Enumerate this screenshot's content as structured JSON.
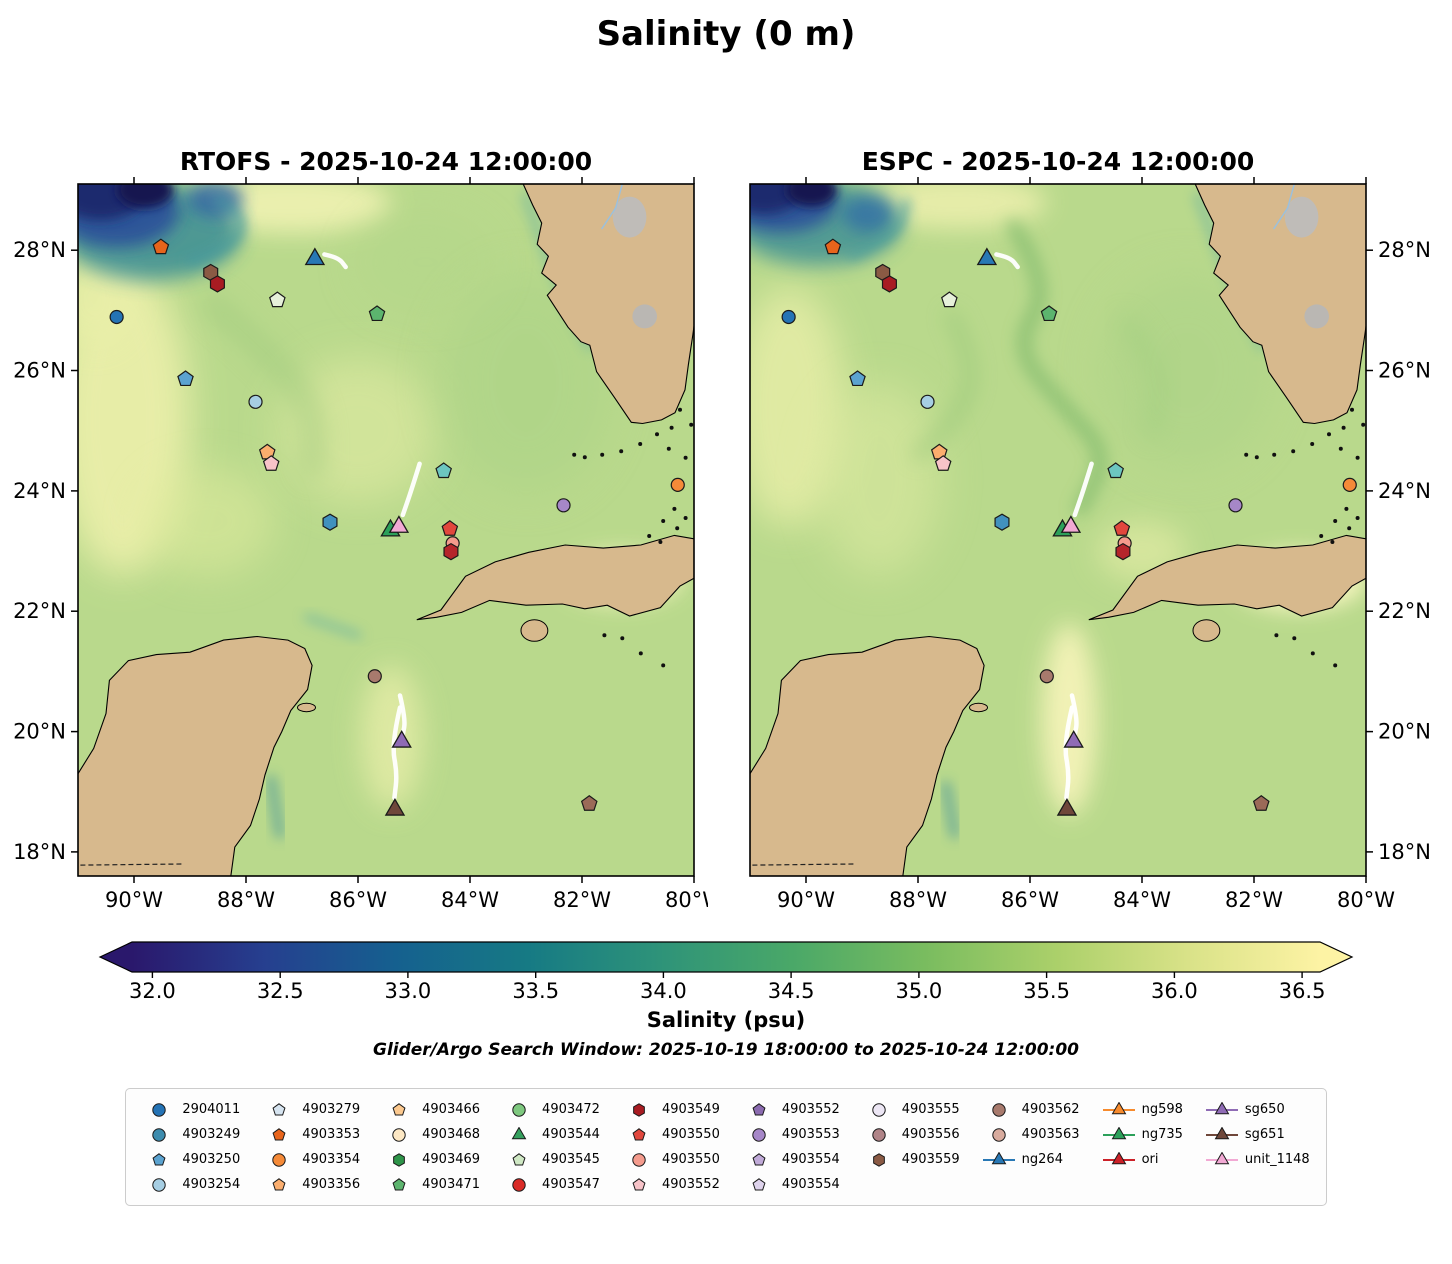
{
  "figure": {
    "title": "Salinity (0 m)"
  },
  "panels": [
    {
      "id": "rtofs",
      "title": "RTOFS - 2025-10-24 12:00:00"
    },
    {
      "id": "espc",
      "title": "ESPC - 2025-10-24 12:00:00"
    }
  ],
  "axes": {
    "lon_ticks": [
      {
        "value": -90,
        "label": "90°W"
      },
      {
        "value": -88,
        "label": "88°W"
      },
      {
        "value": -86,
        "label": "86°W"
      },
      {
        "value": -84,
        "label": "84°W"
      },
      {
        "value": -82,
        "label": "82°W"
      },
      {
        "value": -80,
        "label": "80°W"
      }
    ],
    "lat_ticks": [
      {
        "value": 18,
        "label": "18°N"
      },
      {
        "value": 20,
        "label": "20°N"
      },
      {
        "value": 22,
        "label": "22°N"
      },
      {
        "value": 24,
        "label": "24°N"
      },
      {
        "value": 26,
        "label": "26°N"
      },
      {
        "value": 28,
        "label": "28°N"
      }
    ]
  },
  "colorbar": {
    "label": "Salinity (psu)",
    "ticks": [
      "32.0",
      "32.5",
      "33.0",
      "33.5",
      "34.0",
      "34.5",
      "35.0",
      "35.5",
      "36.0",
      "36.5"
    ],
    "bar_range": [
      31.92,
      36.57
    ],
    "colors": [
      "#2a186c",
      "#263f8f",
      "#15608f",
      "#167a84",
      "#2e9379",
      "#4aa868",
      "#79bc5f",
      "#abd06a",
      "#d9e288",
      "#fdf3a4"
    ]
  },
  "search_window": "Glider/Argo Search Window: 2025-10-19 18:00:00 to 2025-10-24 12:00:00",
  "legend": {
    "columns": [
      [
        {
          "label": "2904011",
          "shape": "circle",
          "color": "#2473b5"
        },
        {
          "label": "4903249",
          "shape": "circle",
          "color": "#3d8cae"
        },
        {
          "label": "4903250",
          "shape": "pentagon",
          "color": "#5ba3d0"
        },
        {
          "label": "4903254",
          "shape": "circle",
          "color": "#a6cee3"
        }
      ],
      [
        {
          "label": "4903279",
          "shape": "pentagon",
          "color": "#d6e4f0"
        },
        {
          "label": "4903353",
          "shape": "pentagon",
          "color": "#e8641b"
        },
        {
          "label": "4903354",
          "shape": "circle",
          "color": "#f58a38"
        },
        {
          "label": "4903356",
          "shape": "pentagon",
          "color": "#fbae6e"
        }
      ],
      [
        {
          "label": "4903466",
          "shape": "pentagon",
          "color": "#fcc98f"
        },
        {
          "label": "4903468",
          "shape": "circle",
          "color": "#fde8c4"
        },
        {
          "label": "4903469",
          "shape": "hexagon",
          "color": "#2e9449"
        },
        {
          "label": "4903471",
          "shape": "pentagon",
          "color": "#5cb46e"
        }
      ],
      [
        {
          "label": "4903472",
          "shape": "circle",
          "color": "#7ec87f"
        },
        {
          "label": "4903544",
          "shape": "triangle",
          "color": "#35a05e"
        },
        {
          "label": "4903545",
          "shape": "pentagon",
          "color": "#cfe8c4"
        },
        {
          "label": "4903547",
          "shape": "circle",
          "color": "#d92b27"
        }
      ],
      [
        {
          "label": "4903549",
          "shape": "hexagon",
          "color": "#a81c22"
        },
        {
          "label": "4903550",
          "shape": "pentagon",
          "color": "#e1473d"
        },
        {
          "label": "4903550",
          "shape": "circle",
          "color": "#f49b8d"
        },
        {
          "label": "4903552",
          "shape": "pentagon",
          "color": "#f7c3c8"
        }
      ],
      [
        {
          "label": "4903552",
          "shape": "pentagon",
          "color": "#8b6bb0"
        },
        {
          "label": "4903553",
          "shape": "circle",
          "color": "#a687c8"
        },
        {
          "label": "4903554",
          "shape": "pentagon",
          "color": "#c0aad8"
        },
        {
          "label": "4903554",
          "shape": "pentagon",
          "color": "#ded3ec"
        }
      ],
      [
        {
          "label": "4903555",
          "shape": "circle",
          "color": "#ece6f4"
        },
        {
          "label": "4903556",
          "shape": "circle",
          "color": "#b08488"
        },
        {
          "label": "4903559",
          "shape": "hexagon",
          "color": "#8a5a44"
        }
      ],
      [
        {
          "label": "4903562",
          "shape": "circle",
          "color": "#a87a6d"
        },
        {
          "label": "4903563",
          "shape": "circle",
          "color": "#d8ab9e"
        },
        {
          "label": "ng264",
          "shape": "triangle",
          "color": "#2878b5",
          "line": true
        }
      ],
      [
        {
          "label": "ng598",
          "shape": "triangle",
          "color": "#f78b2d",
          "line": true
        },
        {
          "label": "ng735",
          "shape": "triangle",
          "color": "#2ca05a",
          "line": true
        },
        {
          "label": "ori",
          "shape": "triangle",
          "color": "#cc2128",
          "line": true
        }
      ],
      [
        {
          "label": "sg650",
          "shape": "triangle",
          "color": "#8f6bb5",
          "line": true
        },
        {
          "label": "sg651",
          "shape": "triangle",
          "color": "#6f473a",
          "line": true
        },
        {
          "label": "unit_1148",
          "shape": "triangle",
          "color": "#f2a9d4",
          "line": true
        }
      ]
    ]
  },
  "chart_data": {
    "type": "heatmap",
    "subtype": "geographic_salinity_field_comparison",
    "title": "Salinity (0 m)",
    "panels": [
      "RTOFS - 2025-10-24 12:00:00",
      "ESPC - 2025-10-24 12:00:00"
    ],
    "extent": {
      "lon": [
        -91,
        -80
      ],
      "lat": [
        17.6,
        29.1
      ]
    },
    "x_ticks_deg_west": [
      90,
      88,
      86,
      84,
      82,
      80
    ],
    "y_ticks_deg_north": [
      18,
      20,
      22,
      24,
      26,
      28
    ],
    "colorbar": {
      "label": "Salinity (psu)",
      "tick_values": [
        32.0,
        32.5,
        33.0,
        33.5,
        34.0,
        34.5,
        35.0,
        35.5,
        36.0,
        36.5
      ]
    },
    "field_notes": "Sea-surface salinity mostly 35.5-36.5 psu (green to pale yellow); low-salinity river plume below 33 psu (dark blue/navy) in the northwest corner of both panels; land masses: Florida, Cuba, Yucatan Peninsula.",
    "argo_floats": [
      {
        "lon": -89.52,
        "lat": 28.05,
        "shape": "pentagon",
        "color": "#e8641b"
      },
      {
        "lon": -90.31,
        "lat": 26.89,
        "shape": "circle",
        "color": "#2473b5"
      },
      {
        "lon": -88.63,
        "lat": 27.63,
        "shape": "hexagon",
        "color": "#8a5a44"
      },
      {
        "lon": -88.51,
        "lat": 27.44,
        "shape": "hexagon",
        "color": "#a81c22"
      },
      {
        "lon": -87.44,
        "lat": 27.17,
        "shape": "pentagon",
        "color": "#e6f0da"
      },
      {
        "lon": -85.66,
        "lat": 26.94,
        "shape": "pentagon",
        "color": "#5cb46e"
      },
      {
        "lon": -89.08,
        "lat": 25.86,
        "shape": "pentagon",
        "color": "#5ba3d0"
      },
      {
        "lon": -87.83,
        "lat": 25.48,
        "shape": "circle",
        "color": "#a6cee3"
      },
      {
        "lon": -87.62,
        "lat": 24.64,
        "shape": "pentagon",
        "color": "#fbae6e"
      },
      {
        "lon": -87.55,
        "lat": 24.45,
        "shape": "pentagon",
        "color": "#f7c3c8"
      },
      {
        "lon": -84.47,
        "lat": 24.33,
        "shape": "pentagon",
        "color": "#6cc6c0"
      },
      {
        "lon": -80.29,
        "lat": 24.1,
        "shape": "circle",
        "color": "#f58a38"
      },
      {
        "lon": -86.5,
        "lat": 23.48,
        "shape": "hexagon",
        "color": "#4191be"
      },
      {
        "lon": -82.33,
        "lat": 23.76,
        "shape": "circle",
        "color": "#a687c8"
      },
      {
        "lon": -84.36,
        "lat": 23.37,
        "shape": "pentagon",
        "color": "#e1473d"
      },
      {
        "lon": -84.31,
        "lat": 23.13,
        "shape": "circle",
        "color": "#f49b8d"
      },
      {
        "lon": -84.34,
        "lat": 22.99,
        "shape": "hexagon",
        "color": "#b5252b"
      },
      {
        "lon": -85.7,
        "lat": 20.92,
        "shape": "circle",
        "color": "#a87a6d"
      },
      {
        "lon": -81.87,
        "lat": 18.8,
        "shape": "pentagon",
        "color": "#9b6a58"
      }
    ],
    "gliders": [
      {
        "id": "ng264",
        "lon": -86.77,
        "lat": 27.85,
        "color": "#2878b5",
        "track": [
          [
            -86.6,
            27.93
          ],
          [
            -86.35,
            27.88
          ],
          [
            -86.22,
            27.72
          ]
        ]
      },
      {
        "id": "ng735",
        "lon": -85.42,
        "lat": 23.34,
        "color": "#2ca05a",
        "track": []
      },
      {
        "id": "unit_1148",
        "lon": -85.27,
        "lat": 23.4,
        "color": "#f2a9d4",
        "track": [
          [
            -84.9,
            24.45
          ],
          [
            -85.05,
            24.0
          ],
          [
            -85.2,
            23.6
          ]
        ]
      },
      {
        "id": "sg650",
        "lon": -85.22,
        "lat": 19.83,
        "color": "#8f6bb5",
        "track": [
          [
            -85.25,
            20.6
          ],
          [
            -85.15,
            20.2
          ],
          [
            -85.2,
            19.95
          ]
        ]
      },
      {
        "id": "sg651",
        "lon": -85.34,
        "lat": 18.7,
        "color": "#6f473a",
        "track": [
          [
            -85.25,
            20.4
          ],
          [
            -85.4,
            19.8
          ],
          [
            -85.3,
            19.3
          ],
          [
            -85.35,
            18.9
          ]
        ]
      }
    ]
  }
}
